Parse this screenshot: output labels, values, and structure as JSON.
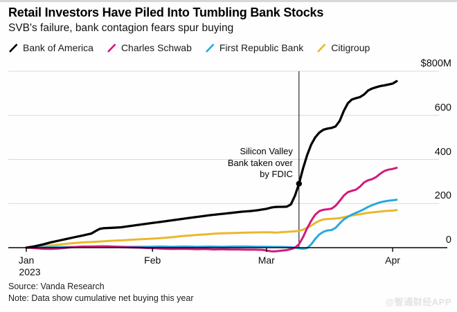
{
  "header": {
    "title": "Retail Investors Have Piled Into Tumbling Bank Stocks",
    "subtitle": "SVB's failure, bank contagion fears spur buying"
  },
  "colors": {
    "gridline": "#d9d9d9",
    "axis": "#000000",
    "rule": "#000000",
    "watermark": "#e3e3e3"
  },
  "chart_data": {
    "type": "line",
    "title": "Retail Investors Have Piled Into Tumbling Bank Stocks",
    "unit": "cumulative net buying, $ millions",
    "x_axis": {
      "year_sublabel": "2023",
      "ticks": [
        {
          "label": "Jan",
          "day": 0,
          "sublabel": "2023"
        },
        {
          "label": "Feb",
          "day": 31
        },
        {
          "label": "Mar",
          "day": 59
        },
        {
          "label": "Apr",
          "day": 90
        }
      ],
      "range_days": [
        0,
        96
      ]
    },
    "y_axis": {
      "ticks": [
        {
          "label": "$800M",
          "value": 800
        },
        {
          "label": "600",
          "value": 600
        },
        {
          "label": "400",
          "value": 400
        },
        {
          "label": "200",
          "value": 200
        },
        {
          "label": "0",
          "value": 0
        }
      ],
      "range": [
        -20,
        800
      ],
      "grid": true,
      "side": "right"
    },
    "annotation": {
      "lines": [
        "Silicon Valley",
        "Bank taken over",
        "by FDIC"
      ],
      "day": 67,
      "marker_value": 290
    },
    "series": [
      {
        "name": "Bank of America",
        "color": "#000000",
        "points": [
          [
            0,
            0
          ],
          [
            2,
            6
          ],
          [
            4,
            14
          ],
          [
            6,
            24
          ],
          [
            8,
            32
          ],
          [
            10,
            40
          ],
          [
            12,
            48
          ],
          [
            14,
            56
          ],
          [
            16,
            64
          ],
          [
            17,
            75
          ],
          [
            18,
            85
          ],
          [
            19,
            88
          ],
          [
            21,
            90
          ],
          [
            23,
            92
          ],
          [
            25,
            97
          ],
          [
            27,
            102
          ],
          [
            29,
            107
          ],
          [
            31,
            112
          ],
          [
            33,
            117
          ],
          [
            35,
            122
          ],
          [
            37,
            127
          ],
          [
            39,
            132
          ],
          [
            41,
            137
          ],
          [
            43,
            142
          ],
          [
            45,
            147
          ],
          [
            47,
            151
          ],
          [
            49,
            155
          ],
          [
            51,
            159
          ],
          [
            53,
            163
          ],
          [
            55,
            166
          ],
          [
            57,
            170
          ],
          [
            59,
            176
          ],
          [
            60,
            181
          ],
          [
            61,
            184
          ],
          [
            62,
            185
          ],
          [
            63,
            185
          ],
          [
            64,
            186
          ],
          [
            65,
            196
          ],
          [
            66,
            235
          ],
          [
            67,
            290
          ],
          [
            68,
            360
          ],
          [
            69,
            420
          ],
          [
            70,
            468
          ],
          [
            71,
            500
          ],
          [
            72,
            522
          ],
          [
            73,
            535
          ],
          [
            74,
            540
          ],
          [
            75,
            543
          ],
          [
            76,
            550
          ],
          [
            77,
            575
          ],
          [
            78,
            620
          ],
          [
            79,
            655
          ],
          [
            80,
            672
          ],
          [
            81,
            678
          ],
          [
            82,
            683
          ],
          [
            83,
            695
          ],
          [
            84,
            713
          ],
          [
            85,
            722
          ],
          [
            86,
            728
          ],
          [
            87,
            733
          ],
          [
            88,
            736
          ],
          [
            89,
            740
          ],
          [
            90,
            744
          ],
          [
            91,
            755
          ]
        ]
      },
      {
        "name": "Charles Schwab",
        "color": "#d2197d",
        "points": [
          [
            0,
            0
          ],
          [
            2,
            -2
          ],
          [
            4,
            -5
          ],
          [
            6,
            -6
          ],
          [
            8,
            -4
          ],
          [
            10,
            0
          ],
          [
            12,
            3
          ],
          [
            14,
            5
          ],
          [
            16,
            5
          ],
          [
            18,
            6
          ],
          [
            20,
            6
          ],
          [
            22,
            4
          ],
          [
            24,
            2
          ],
          [
            26,
            1
          ],
          [
            28,
            0
          ],
          [
            30,
            -2
          ],
          [
            32,
            -3
          ],
          [
            34,
            -5
          ],
          [
            36,
            -6
          ],
          [
            38,
            -5
          ],
          [
            40,
            -6
          ],
          [
            42,
            -7
          ],
          [
            44,
            -6
          ],
          [
            46,
            -8
          ],
          [
            48,
            -7
          ],
          [
            50,
            -8
          ],
          [
            52,
            -8
          ],
          [
            54,
            -9
          ],
          [
            56,
            -9
          ],
          [
            58,
            -10
          ],
          [
            59,
            -13
          ],
          [
            60,
            -16
          ],
          [
            61,
            -17
          ],
          [
            62,
            -15
          ],
          [
            63,
            -13
          ],
          [
            64,
            -11
          ],
          [
            65,
            -7
          ],
          [
            66,
            0
          ],
          [
            67,
            15
          ],
          [
            68,
            48
          ],
          [
            69,
            88
          ],
          [
            70,
            122
          ],
          [
            71,
            150
          ],
          [
            72,
            166
          ],
          [
            73,
            172
          ],
          [
            74,
            174
          ],
          [
            75,
            177
          ],
          [
            76,
            190
          ],
          [
            77,
            212
          ],
          [
            78,
            236
          ],
          [
            79,
            252
          ],
          [
            80,
            258
          ],
          [
            81,
            263
          ],
          [
            82,
            277
          ],
          [
            83,
            296
          ],
          [
            84,
            306
          ],
          [
            85,
            311
          ],
          [
            86,
            321
          ],
          [
            87,
            336
          ],
          [
            88,
            348
          ],
          [
            89,
            354
          ],
          [
            90,
            357
          ],
          [
            91,
            362
          ]
        ]
      },
      {
        "name": "First Republic Bank",
        "color": "#29a8dd",
        "points": [
          [
            0,
            0
          ],
          [
            3,
            1
          ],
          [
            6,
            2
          ],
          [
            9,
            3
          ],
          [
            12,
            3
          ],
          [
            15,
            4
          ],
          [
            18,
            5
          ],
          [
            21,
            5
          ],
          [
            24,
            4
          ],
          [
            27,
            4
          ],
          [
            30,
            4
          ],
          [
            33,
            5
          ],
          [
            36,
            4
          ],
          [
            39,
            5
          ],
          [
            42,
            4
          ],
          [
            45,
            5
          ],
          [
            48,
            4
          ],
          [
            51,
            5
          ],
          [
            54,
            5
          ],
          [
            57,
            4
          ],
          [
            59,
            4
          ],
          [
            61,
            3
          ],
          [
            63,
            3
          ],
          [
            65,
            2
          ],
          [
            66,
            0
          ],
          [
            67,
            -3
          ],
          [
            68,
            -5
          ],
          [
            69,
            -2
          ],
          [
            70,
            15
          ],
          [
            71,
            40
          ],
          [
            72,
            60
          ],
          [
            73,
            72
          ],
          [
            74,
            78
          ],
          [
            75,
            80
          ],
          [
            76,
            90
          ],
          [
            77,
            110
          ],
          [
            78,
            128
          ],
          [
            79,
            140
          ],
          [
            80,
            150
          ],
          [
            81,
            158
          ],
          [
            82,
            166
          ],
          [
            83,
            175
          ],
          [
            84,
            185
          ],
          [
            85,
            193
          ],
          [
            86,
            200
          ],
          [
            87,
            206
          ],
          [
            88,
            210
          ],
          [
            89,
            213
          ],
          [
            90,
            215
          ],
          [
            91,
            217
          ]
        ]
      },
      {
        "name": "Citigroup",
        "color": "#eab82b",
        "points": [
          [
            0,
            0
          ],
          [
            2,
            3
          ],
          [
            4,
            7
          ],
          [
            6,
            10
          ],
          [
            8,
            14
          ],
          [
            10,
            18
          ],
          [
            12,
            21
          ],
          [
            14,
            24
          ],
          [
            16,
            26
          ],
          [
            18,
            28
          ],
          [
            20,
            30
          ],
          [
            22,
            32
          ],
          [
            24,
            34
          ],
          [
            26,
            36
          ],
          [
            28,
            38
          ],
          [
            30,
            40
          ],
          [
            32,
            42
          ],
          [
            34,
            45
          ],
          [
            36,
            48
          ],
          [
            38,
            52
          ],
          [
            40,
            55
          ],
          [
            42,
            58
          ],
          [
            44,
            60
          ],
          [
            46,
            63
          ],
          [
            48,
            65
          ],
          [
            50,
            66
          ],
          [
            52,
            67
          ],
          [
            54,
            68
          ],
          [
            56,
            69
          ],
          [
            58,
            70
          ],
          [
            60,
            70
          ],
          [
            61,
            68
          ],
          [
            62,
            69
          ],
          [
            63,
            71
          ],
          [
            64,
            72
          ],
          [
            65,
            73
          ],
          [
            66,
            74
          ],
          [
            67,
            76
          ],
          [
            68,
            82
          ],
          [
            69,
            90
          ],
          [
            70,
            100
          ],
          [
            71,
            112
          ],
          [
            72,
            122
          ],
          [
            73,
            128
          ],
          [
            74,
            130
          ],
          [
            75,
            131
          ],
          [
            76,
            132
          ],
          [
            77,
            134
          ],
          [
            78,
            138
          ],
          [
            79,
            142
          ],
          [
            80,
            146
          ],
          [
            81,
            149
          ],
          [
            82,
            152
          ],
          [
            83,
            155
          ],
          [
            84,
            158
          ],
          [
            85,
            160
          ],
          [
            86,
            162
          ],
          [
            87,
            164
          ],
          [
            88,
            166
          ],
          [
            89,
            167
          ],
          [
            90,
            168
          ],
          [
            91,
            170
          ]
        ]
      }
    ]
  },
  "footer": {
    "source": "Source: Vanda Research",
    "note": "Note: Data show cumulative net buying this year",
    "watermark": "@智通财经APP"
  }
}
